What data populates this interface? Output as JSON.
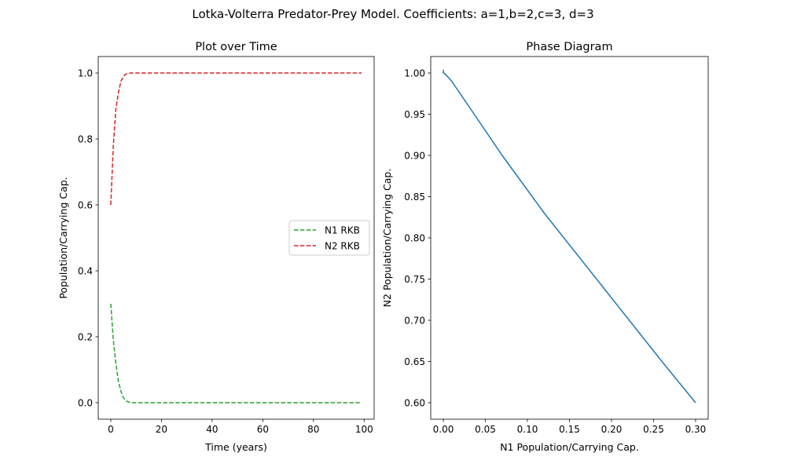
{
  "figure": {
    "suptitle": "Lotka-Volterra Predator-Prey Model. Coefficients: a=1,b=2,c=3, d=3"
  },
  "chart_data": [
    {
      "type": "line",
      "title": "Plot over Time",
      "xlabel": "Time (years)",
      "ylabel": "Population/Carrying Cap.",
      "xlim": [
        -4.95,
        103.95
      ],
      "ylim": [
        -0.05,
        1.05
      ],
      "xticks": [
        0,
        20,
        40,
        60,
        80,
        100
      ],
      "xtick_labels": [
        "0",
        "20",
        "40",
        "60",
        "80",
        "100"
      ],
      "yticks": [
        0.0,
        0.2,
        0.4,
        0.6,
        0.8,
        1.0
      ],
      "ytick_labels": [
        "0.0",
        "0.2",
        "0.4",
        "0.6",
        "0.8",
        "1.0"
      ],
      "grid": false,
      "legend": "center right",
      "series": [
        {
          "name": "N1 RKB",
          "color": "#2ca02c",
          "linestyle": "dashed",
          "x": [
            0,
            1,
            2,
            3,
            4,
            5,
            6,
            7,
            8,
            10,
            15,
            20,
            30,
            40,
            50,
            60,
            70,
            80,
            90,
            99
          ],
          "y": [
            0.3,
            0.19,
            0.12,
            0.065,
            0.035,
            0.015,
            0.006,
            0.002,
            0.0005,
            0.0,
            0.0,
            0.0,
            0.0,
            0.0,
            0.0,
            0.0,
            0.0,
            0.0,
            0.0,
            0.0
          ]
        },
        {
          "name": "N2 RKB",
          "color": "#d62728",
          "linestyle": "dashed",
          "x": [
            0,
            1,
            2,
            3,
            4,
            5,
            6,
            7,
            8,
            10,
            15,
            20,
            30,
            40,
            50,
            60,
            70,
            80,
            90,
            99
          ],
          "y": [
            0.6,
            0.78,
            0.89,
            0.94,
            0.975,
            0.99,
            0.997,
            0.999,
            1.0,
            1.0,
            1.0,
            1.0,
            1.0,
            1.0,
            1.0,
            1.0,
            1.0,
            1.0,
            1.0,
            1.0
          ]
        }
      ]
    },
    {
      "type": "line",
      "title": "Phase Diagram",
      "xlabel": "N1 Population/Carrying Cap.",
      "ylabel": "N2 Population/Carrying Cap.",
      "xlim": [
        -0.015,
        0.315
      ],
      "ylim": [
        0.58,
        1.02
      ],
      "xticks": [
        0.0,
        0.05,
        0.1,
        0.15,
        0.2,
        0.25,
        0.3
      ],
      "xtick_labels": [
        "0.00",
        "0.05",
        "0.10",
        "0.15",
        "0.20",
        "0.25",
        "0.30"
      ],
      "yticks": [
        0.6,
        0.65,
        0.7,
        0.75,
        0.8,
        0.85,
        0.9,
        0.95,
        1.0
      ],
      "ytick_labels": [
        "0.60",
        "0.65",
        "0.70",
        "0.75",
        "0.80",
        "0.85",
        "0.90",
        "0.95",
        "1.00"
      ],
      "grid": false,
      "series": [
        {
          "color": "#1f77b4",
          "linestyle": "solid",
          "x": [
            0.3,
            0.26,
            0.19,
            0.12,
            0.07,
            0.03,
            0.01,
            0.003,
            0.0005,
            0.0,
            0.0
          ],
          "y": [
            0.6,
            0.65,
            0.74,
            0.83,
            0.9,
            0.96,
            0.99,
            0.998,
            1.0,
            1.0,
            1.004
          ]
        }
      ]
    }
  ]
}
